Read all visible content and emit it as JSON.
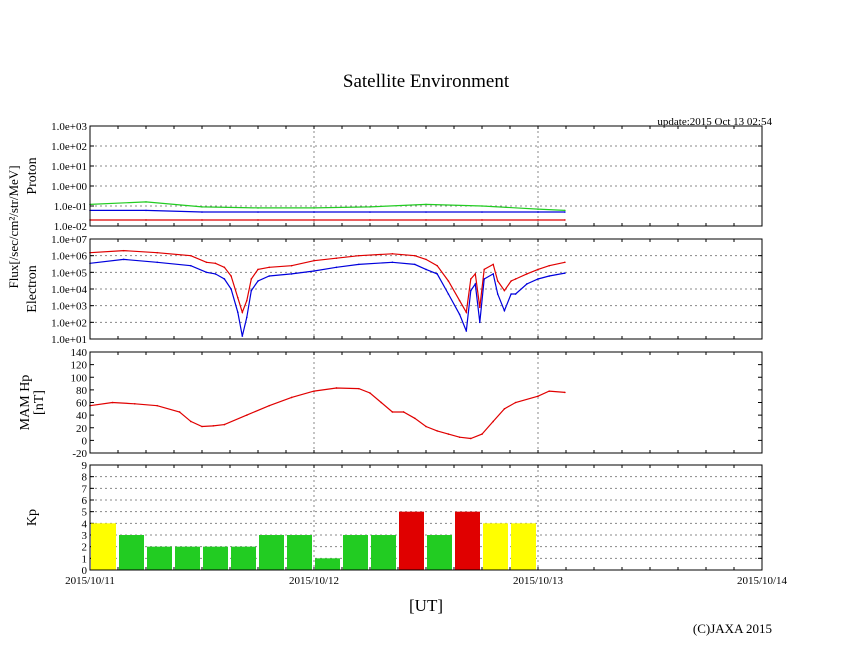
{
  "title": "Satellite Environment",
  "update": "update:2015 Oct 13 02:54",
  "copyright": "(C)JAXA 2015",
  "xlabel": "[UT]",
  "x_ticks": [
    "2015/10/11",
    "2015/10/12",
    "2015/10/13",
    "2015/10/14"
  ],
  "flux_label": "Flux[/sec/cm²/str/MeV]",
  "colors": {
    "red": "#e00000",
    "blue": "#0000dd",
    "green": "#22cc22",
    "yellow": "#ffff00",
    "grid": "#888888"
  },
  "chart_data": [
    {
      "type": "line",
      "panel": "proton",
      "ylabel": "Proton",
      "yscale": "log",
      "ylim": [
        0.01,
        1000
      ],
      "y_ticks": [
        "1.0e-02",
        "1.0e-01",
        "1.0e+00",
        "1.0e+01",
        "1.0e+02",
        "1.0e+03"
      ],
      "x_range_days": [
        0,
        3
      ],
      "series": [
        {
          "color": "green",
          "x": [
            0,
            0.25,
            0.5,
            0.75,
            1.0,
            1.25,
            1.5,
            1.75,
            2.0,
            2.12
          ],
          "values": [
            0.12,
            0.16,
            0.09,
            0.08,
            0.08,
            0.09,
            0.12,
            0.1,
            0.07,
            0.06
          ]
        },
        {
          "color": "blue",
          "x": [
            0,
            0.25,
            0.5,
            0.75,
            1.0,
            1.25,
            1.5,
            1.75,
            2.0,
            2.12
          ],
          "values": [
            0.06,
            0.06,
            0.05,
            0.05,
            0.05,
            0.05,
            0.05,
            0.05,
            0.05,
            0.05
          ]
        },
        {
          "color": "red",
          "x": [
            0,
            0.25,
            0.5,
            0.75,
            1.0,
            1.25,
            1.5,
            1.75,
            2.0,
            2.12
          ],
          "values": [
            0.02,
            0.02,
            0.02,
            0.02,
            0.02,
            0.02,
            0.02,
            0.02,
            0.02,
            0.02
          ]
        }
      ]
    },
    {
      "type": "line",
      "panel": "electron",
      "ylabel": "Electron",
      "yscale": "log",
      "ylim": [
        10,
        10000000
      ],
      "y_ticks": [
        "1.0e+01",
        "1.0e+02",
        "1.0e+03",
        "1.0e+04",
        "1.0e+05",
        "1.0e+06",
        "1.0e+07"
      ],
      "x_range_days": [
        0,
        3
      ],
      "series": [
        {
          "color": "red",
          "x": [
            0,
            0.15,
            0.3,
            0.45,
            0.52,
            0.56,
            0.6,
            0.63,
            0.66,
            0.68,
            0.7,
            0.72,
            0.75,
            0.8,
            0.9,
            1.0,
            1.1,
            1.2,
            1.35,
            1.45,
            1.5,
            1.55,
            1.6,
            1.65,
            1.68,
            1.7,
            1.72,
            1.74,
            1.76,
            1.8,
            1.82,
            1.85,
            1.88,
            1.9,
            1.95,
            2.0,
            2.05,
            2.12
          ],
          "values": [
            1500000,
            2000000,
            1500000,
            1000000,
            400000,
            350000,
            200000,
            60000,
            3000,
            400,
            2000,
            40000,
            150000,
            200000,
            250000,
            500000,
            700000,
            1000000,
            1300000,
            1000000,
            600000,
            250000,
            30000,
            2000,
            400,
            40000,
            80000,
            800,
            150000,
            300000,
            30000,
            8000,
            30000,
            40000,
            80000,
            150000,
            250000,
            400000
          ]
        },
        {
          "color": "blue",
          "x": [
            0,
            0.15,
            0.3,
            0.45,
            0.52,
            0.56,
            0.6,
            0.63,
            0.66,
            0.68,
            0.7,
            0.72,
            0.75,
            0.8,
            0.9,
            1.0,
            1.1,
            1.2,
            1.35,
            1.45,
            1.5,
            1.55,
            1.6,
            1.65,
            1.68,
            1.7,
            1.72,
            1.74,
            1.76,
            1.8,
            1.82,
            1.85,
            1.88,
            1.9,
            1.95,
            2.0,
            2.05,
            2.12
          ],
          "values": [
            350000,
            600000,
            400000,
            250000,
            100000,
            80000,
            40000,
            10000,
            400,
            15,
            200,
            8000,
            30000,
            60000,
            80000,
            120000,
            200000,
            300000,
            400000,
            300000,
            150000,
            80000,
            5000,
            300,
            30,
            8000,
            20000,
            100,
            40000,
            80000,
            5000,
            500,
            5000,
            5000,
            20000,
            40000,
            60000,
            90000
          ]
        }
      ]
    },
    {
      "type": "line",
      "panel": "hp",
      "ylabel": "MAM Hp\n[nT]",
      "ylim": [
        -20,
        140
      ],
      "y_ticks": [
        "-20",
        "0",
        "20",
        "40",
        "60",
        "80",
        "100",
        "120",
        "140"
      ],
      "x_range_days": [
        0,
        3
      ],
      "series": [
        {
          "color": "red",
          "x": [
            0,
            0.1,
            0.2,
            0.3,
            0.4,
            0.45,
            0.5,
            0.55,
            0.6,
            0.7,
            0.8,
            0.9,
            1.0,
            1.1,
            1.2,
            1.25,
            1.3,
            1.35,
            1.4,
            1.45,
            1.5,
            1.55,
            1.6,
            1.65,
            1.7,
            1.75,
            1.8,
            1.85,
            1.9,
            2.0,
            2.05,
            2.12
          ],
          "values": [
            55,
            60,
            58,
            55,
            45,
            30,
            22,
            23,
            25,
            40,
            55,
            68,
            78,
            83,
            82,
            75,
            60,
            45,
            45,
            35,
            22,
            15,
            10,
            5,
            3,
            10,
            30,
            50,
            60,
            70,
            78,
            76
          ]
        }
      ]
    },
    {
      "type": "bar",
      "panel": "kp",
      "ylabel": "Kp",
      "ylim": [
        0,
        9
      ],
      "y_ticks": [
        "0",
        "1",
        "2",
        "3",
        "4",
        "5",
        "6",
        "7",
        "8",
        "9"
      ],
      "values": [
        4,
        3,
        2,
        2,
        2,
        2,
        3,
        3,
        1,
        3,
        3,
        5,
        3,
        5,
        4,
        4
      ],
      "colors": [
        "yellow",
        "green",
        "green",
        "green",
        "green",
        "green",
        "green",
        "green",
        "green",
        "green",
        "green",
        "red",
        "green",
        "red",
        "yellow",
        "yellow"
      ]
    }
  ]
}
